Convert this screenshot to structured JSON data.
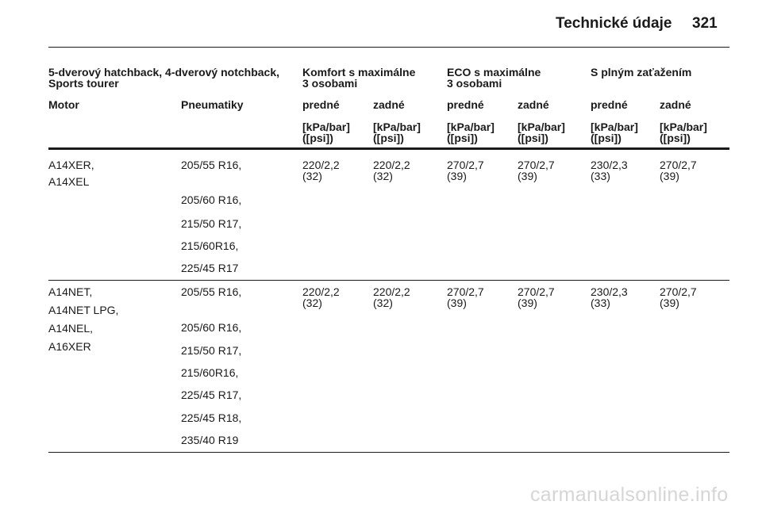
{
  "header": {
    "title": "Technické údaje",
    "page_number": "321"
  },
  "table": {
    "group_headers": [
      {
        "line1": "5-dverový hatchback, 4-dverový notchback,",
        "line2": "Sports tourer"
      },
      {
        "line1": "Komfort s maximálne",
        "line2": "3 osobami"
      },
      {
        "line1": "ECO s maximálne",
        "line2": "3 osobami"
      },
      {
        "line1": "S plným zaťažením",
        "line2": ""
      }
    ],
    "col_headers": [
      "Motor",
      "Pneumatiky",
      "predné",
      "zadné",
      "predné",
      "zadné",
      "predné",
      "zadné"
    ],
    "unit_line1": "[kPa/bar]",
    "unit_line2": "([psi])",
    "rows": [
      {
        "motors": [
          "A14XER,",
          "A14XEL"
        ],
        "tyres": [
          "205/55 R16,",
          "205/60 R16,",
          "215/50 R17,",
          "215/60R16,",
          "225/45 R17"
        ],
        "values": [
          {
            "kpa": "220/2,2",
            "psi": "(32)"
          },
          {
            "kpa": "220/2,2",
            "psi": "(32)"
          },
          {
            "kpa": "270/2,7",
            "psi": "(39)"
          },
          {
            "kpa": "270/2,7",
            "psi": "(39)"
          },
          {
            "kpa": "230/2,3",
            "psi": "(33)"
          },
          {
            "kpa": "270/2,7",
            "psi": "(39)"
          }
        ]
      },
      {
        "motors": [
          "A14NET,",
          "A14NET LPG,",
          "A14NEL,",
          "A16XER"
        ],
        "tyres": [
          "205/55 R16,",
          "205/60 R16,",
          "215/50 R17,",
          "215/60R16,",
          "225/45 R17,",
          "225/45 R18,",
          "235/40 R19"
        ],
        "values": [
          {
            "kpa": "220/2,2",
            "psi": "(32)"
          },
          {
            "kpa": "220/2,2",
            "psi": "(32)"
          },
          {
            "kpa": "270/2,7",
            "psi": "(39)"
          },
          {
            "kpa": "270/2,7",
            "psi": "(39)"
          },
          {
            "kpa": "230/2,3",
            "psi": "(33)"
          },
          {
            "kpa": "270/2,7",
            "psi": "(39)"
          }
        ]
      }
    ]
  },
  "watermark": "carmanualsonline.info"
}
